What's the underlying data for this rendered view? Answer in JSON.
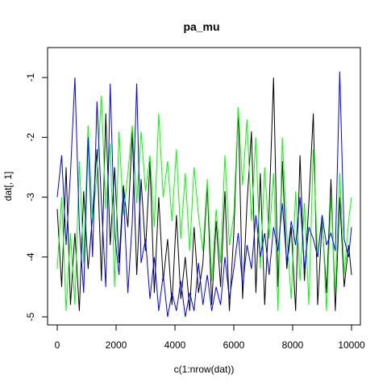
{
  "chart_data": {
    "type": "line",
    "title": "pa_mu",
    "xlabel": "c(1:nrow(dat))",
    "ylabel": "dat[, 1]",
    "xlim": [
      0,
      10000
    ],
    "ylim": [
      -5,
      -0.85
    ],
    "x_ticks": [
      0,
      2000,
      4000,
      6000,
      8000,
      10000
    ],
    "x_tick_labels": [
      "0",
      "2000",
      "4000",
      "6000",
      "8000",
      "10000"
    ],
    "y_ticks": [
      -5,
      -4,
      -3,
      -2,
      -1
    ],
    "y_tick_labels": [
      "-5",
      "-4",
      "-3",
      "-2",
      "-1"
    ],
    "grid": false,
    "legend": "none",
    "series": [
      {
        "color": "#000000",
        "x": [
          0,
          150,
          300,
          450,
          600,
          750,
          900,
          1050,
          1200,
          1350,
          1500,
          1650,
          1800,
          1950,
          2100,
          2250,
          2400,
          2550,
          2700,
          2850,
          3000,
          3150,
          3300,
          3450,
          3600,
          3750,
          3900,
          4050,
          4200,
          4350,
          4500,
          4650,
          4800,
          4950,
          5100,
          5250,
          5400,
          5550,
          5700,
          5850,
          6000,
          6150,
          6300,
          6450,
          6600,
          6750,
          6900,
          7050,
          7200,
          7350,
          7500,
          7650,
          7800,
          7950,
          8100,
          8250,
          8400,
          8550,
          8700,
          8850,
          9000,
          9150,
          9300,
          9450,
          9600,
          9750,
          9900,
          10000
        ],
        "y": [
          -3.2,
          -4.5,
          -2.5,
          -4.8,
          -3.6,
          -4.9,
          -2.9,
          -4.2,
          -3.3,
          -2.2,
          -4.4,
          -1.6,
          -3.8,
          -2.5,
          -4.1,
          -2.8,
          -3.5,
          -1.9,
          -4.3,
          -2.7,
          -3.9,
          -2.4,
          -4.6,
          -3.0,
          -4.4,
          -3.7,
          -4.8,
          -3.3,
          -4.7,
          -4.0,
          -4.9,
          -3.5,
          -4.6,
          -4.1,
          -2.8,
          -4.8,
          -3.4,
          -4.5,
          -2.9,
          -4.9,
          -3.6,
          -1.5,
          -4.7,
          -3.1,
          -1.9,
          -4.6,
          -2.6,
          -4.8,
          -3.2,
          -1.0,
          -4.5,
          -2.4,
          -4.2,
          -3.5,
          -4.9,
          -2.3,
          -4.4,
          -3.1,
          -1.6,
          -4.8,
          -3.4,
          -4.6,
          -2.7,
          -4.9,
          -3.0,
          -4.5,
          -3.8,
          -4.3
        ]
      },
      {
        "color": "#00ff00",
        "x": [
          0,
          150,
          300,
          450,
          600,
          750,
          900,
          1050,
          1200,
          1350,
          1500,
          1650,
          1800,
          1950,
          2100,
          2250,
          2400,
          2550,
          2700,
          2850,
          3000,
          3150,
          3300,
          3450,
          3600,
          3750,
          3900,
          4050,
          4200,
          4350,
          4500,
          4650,
          4800,
          4950,
          5100,
          5250,
          5400,
          5550,
          5700,
          5850,
          6000,
          6150,
          6300,
          6450,
          6600,
          6750,
          6900,
          7050,
          7200,
          7350,
          7500,
          7650,
          7800,
          7950,
          8100,
          8250,
          8400,
          8550,
          8700,
          8850,
          9000,
          9150,
          9300,
          9450,
          9600,
          9750,
          9900,
          10000
        ],
        "y": [
          -4.2,
          -3.0,
          -4.9,
          -3.6,
          -4.8,
          -2.4,
          -4.1,
          -1.8,
          -3.4,
          -2.6,
          -1.3,
          -3.2,
          -2.1,
          -4.5,
          -1.9,
          -3.3,
          -2.6,
          -1.8,
          -3.1,
          -1.9,
          -2.9,
          -2.3,
          -3.5,
          -1.6,
          -3.0,
          -2.4,
          -3.4,
          -2.2,
          -3.7,
          -2.6,
          -3.9,
          -2.5,
          -3.3,
          -3.9,
          -2.7,
          -4.4,
          -3.2,
          -4.1,
          -2.3,
          -3.8,
          -3.3,
          -1.5,
          -2.8,
          -1.7,
          -3.4,
          -2.0,
          -4.2,
          -2.5,
          -3.7,
          -2.6,
          -4.9,
          -2.0,
          -3.6,
          -4.7,
          -2.9,
          -4.4,
          -3.1,
          -4.8,
          -2.2,
          -4.0,
          -3.3,
          -4.9,
          -3.0,
          -4.6,
          -2.6,
          -4.3,
          -3.4,
          -3.0
        ]
      },
      {
        "color": "#0000ff",
        "x": [
          0,
          150,
          300,
          450,
          600,
          750,
          900,
          1050,
          1200,
          1350,
          1500,
          1650,
          1800,
          1950,
          2100,
          2250,
          2400,
          2550,
          2700,
          2850,
          3000,
          3150,
          3300,
          3450,
          3600,
          3750,
          3900,
          4050,
          4200,
          4350,
          4500,
          4650,
          4800,
          4950,
          5100,
          5250,
          5400,
          5550,
          5700,
          5850,
          6000,
          6150,
          6300,
          6450,
          6600,
          6750,
          6900,
          7050,
          7200,
          7350,
          7500,
          7650,
          7800,
          7950,
          8100,
          8250,
          8400,
          8550,
          8700,
          8850,
          9000,
          9150,
          9300,
          9450,
          9600,
          9750,
          9900,
          10000
        ],
        "y": [
          -3.0,
          -2.3,
          -3.8,
          -2.6,
          -1.0,
          -3.5,
          -4.6,
          -2.0,
          -4.0,
          -1.4,
          -3.1,
          -4.5,
          -1.1,
          -3.6,
          -4.3,
          -2.9,
          -4.6,
          -3.4,
          -1.1,
          -4.1,
          -3.7,
          -4.7,
          -4.0,
          -4.9,
          -4.3,
          -5.0,
          -4.6,
          -4.9,
          -4.4,
          -5.0,
          -4.6,
          -4.9,
          -4.1,
          -4.8,
          -4.3,
          -4.9,
          -4.5,
          -4.8,
          -4.0,
          -4.7,
          -4.2,
          -3.6,
          -4.5,
          -3.8,
          -4.2,
          -3.3,
          -4.0,
          -3.6,
          -4.3,
          -3.5,
          -3.9,
          -3.1,
          -4.1,
          -3.4,
          -3.8,
          -3.0,
          -4.2,
          -3.5,
          -3.7,
          -4.0,
          -3.3,
          -3.8,
          -3.6,
          -3.9,
          -0.9,
          -3.7,
          -4.0,
          -3.5
        ]
      }
    ]
  }
}
